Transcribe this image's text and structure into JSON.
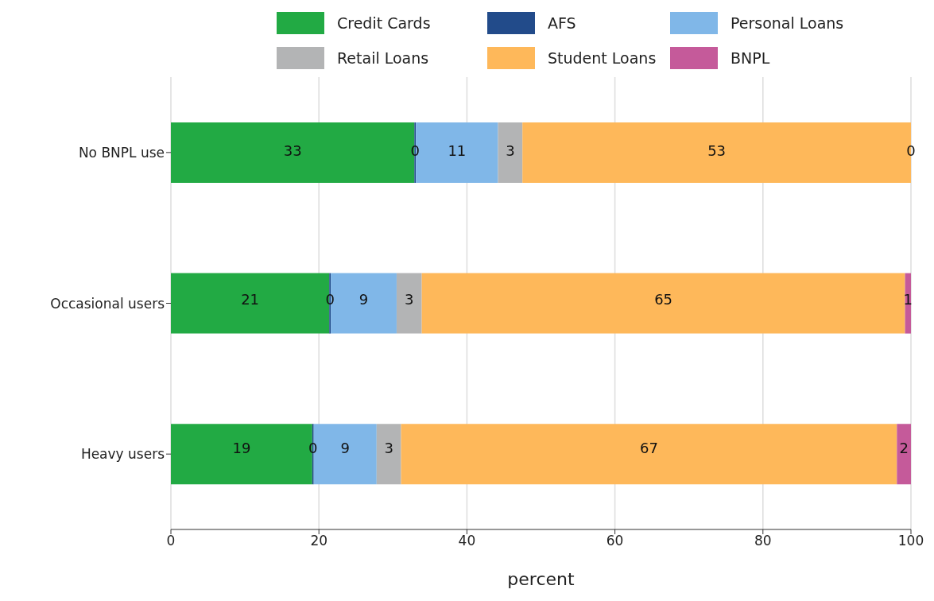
{
  "chart_data": {
    "type": "bar",
    "orientation": "horizontal",
    "stacked": true,
    "categories": [
      "No BNPL use",
      "Occasional users",
      "Heavy users"
    ],
    "series": [
      {
        "name": "Credit Cards",
        "color": "#22aa44",
        "values": [
          32.9,
          21.4,
          19.1
        ],
        "value_labels": [
          "33",
          "21",
          "19"
        ]
      },
      {
        "name": "AFS",
        "color": "#224b8a",
        "values": [
          0.2,
          0.2,
          0.2
        ],
        "value_labels": [
          "0",
          "0",
          "0"
        ]
      },
      {
        "name": "Personal Loans",
        "color": "#80b7e8",
        "values": [
          11.1,
          8.9,
          8.5
        ],
        "value_labels": [
          "11",
          "9",
          "9"
        ]
      },
      {
        "name": "Retail Loans",
        "color": "#b3b4b5",
        "values": [
          3.3,
          3.4,
          3.3
        ],
        "value_labels": [
          "3",
          "3",
          "3"
        ]
      },
      {
        "name": "Student Loans",
        "color": "#feb85a",
        "values": [
          52.5,
          65.3,
          67.0
        ],
        "value_labels": [
          "53",
          "65",
          "67"
        ]
      },
      {
        "name": "BNPL",
        "color": "#c55a9a",
        "values": [
          0,
          0.8,
          1.9
        ],
        "value_labels": [
          "0",
          "1",
          "2"
        ]
      }
    ],
    "xlabel": "percent",
    "xlim": [
      0,
      100
    ],
    "xticks": [
      0,
      20,
      40,
      60,
      80,
      100
    ],
    "grid": "x",
    "legend": "top"
  }
}
